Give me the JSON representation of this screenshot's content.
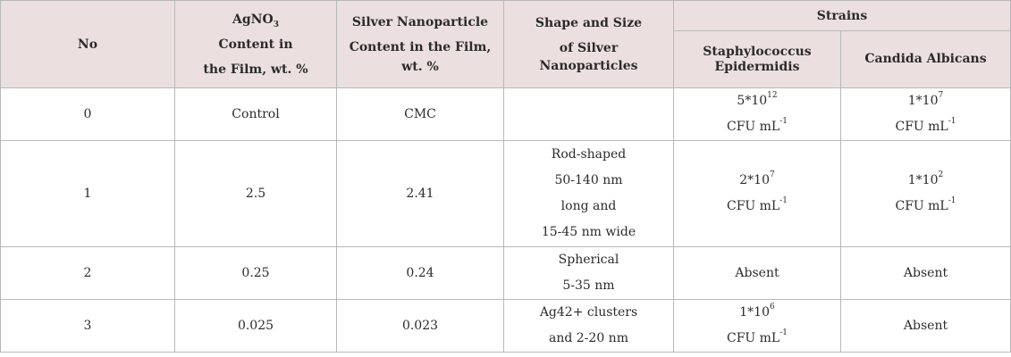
{
  "header": {
    "no": "No",
    "agno3_pre": "AgNO",
    "agno3_sub": "3",
    "agno3_l2": "Content in",
    "agno3_l3": "the Film, wt. %",
    "silver_l1": "Silver Nanoparticle",
    "silver_l2": "Content in the Film,",
    "silver_l3": "wt. %",
    "shape_l1": "Shape and Size",
    "shape_l2": "of Silver",
    "shape_l3": "Nanoparticles",
    "strains": "Strains",
    "staph_l1": "Staphylococcus",
    "staph_l2": "Epidermidis",
    "candida": "Candida Albicans"
  },
  "rows": [
    {
      "no": "0",
      "agno3": "Control",
      "silver": "CMC",
      "shape": [],
      "staph": {
        "base": "5*10",
        "exp": "12",
        "unit": "CFU mL",
        "unit_exp": "-1"
      },
      "candida": {
        "base": "1*10",
        "exp": "7",
        "unit": "CFU mL",
        "unit_exp": "-1"
      }
    },
    {
      "no": "1",
      "agno3": "2.5",
      "silver": "2.41",
      "shape": [
        "Rod-shaped",
        "50-140 nm",
        "long and",
        "15-45 nm wide"
      ],
      "staph": {
        "base": "2*10",
        "exp": "7",
        "unit": "CFU mL",
        "unit_exp": "-1"
      },
      "candida": {
        "base": "1*10",
        "exp": "2",
        "unit": "CFU mL",
        "unit_exp": "-1"
      }
    },
    {
      "no": "2",
      "agno3": "0.25",
      "silver": "0.24",
      "shape": [
        "Spherical",
        "5-35 nm"
      ],
      "staph_text": "Absent",
      "candida_text": "Absent"
    },
    {
      "no": "3",
      "agno3": "0.025",
      "silver": "0.023",
      "shape": [
        "Ag42+ clusters",
        "and 2-20 nm"
      ],
      "staph": {
        "base": "1*10",
        "exp": "6",
        "unit": "CFU mL",
        "unit_exp": "-1"
      },
      "candida_text": "Absent"
    }
  ]
}
